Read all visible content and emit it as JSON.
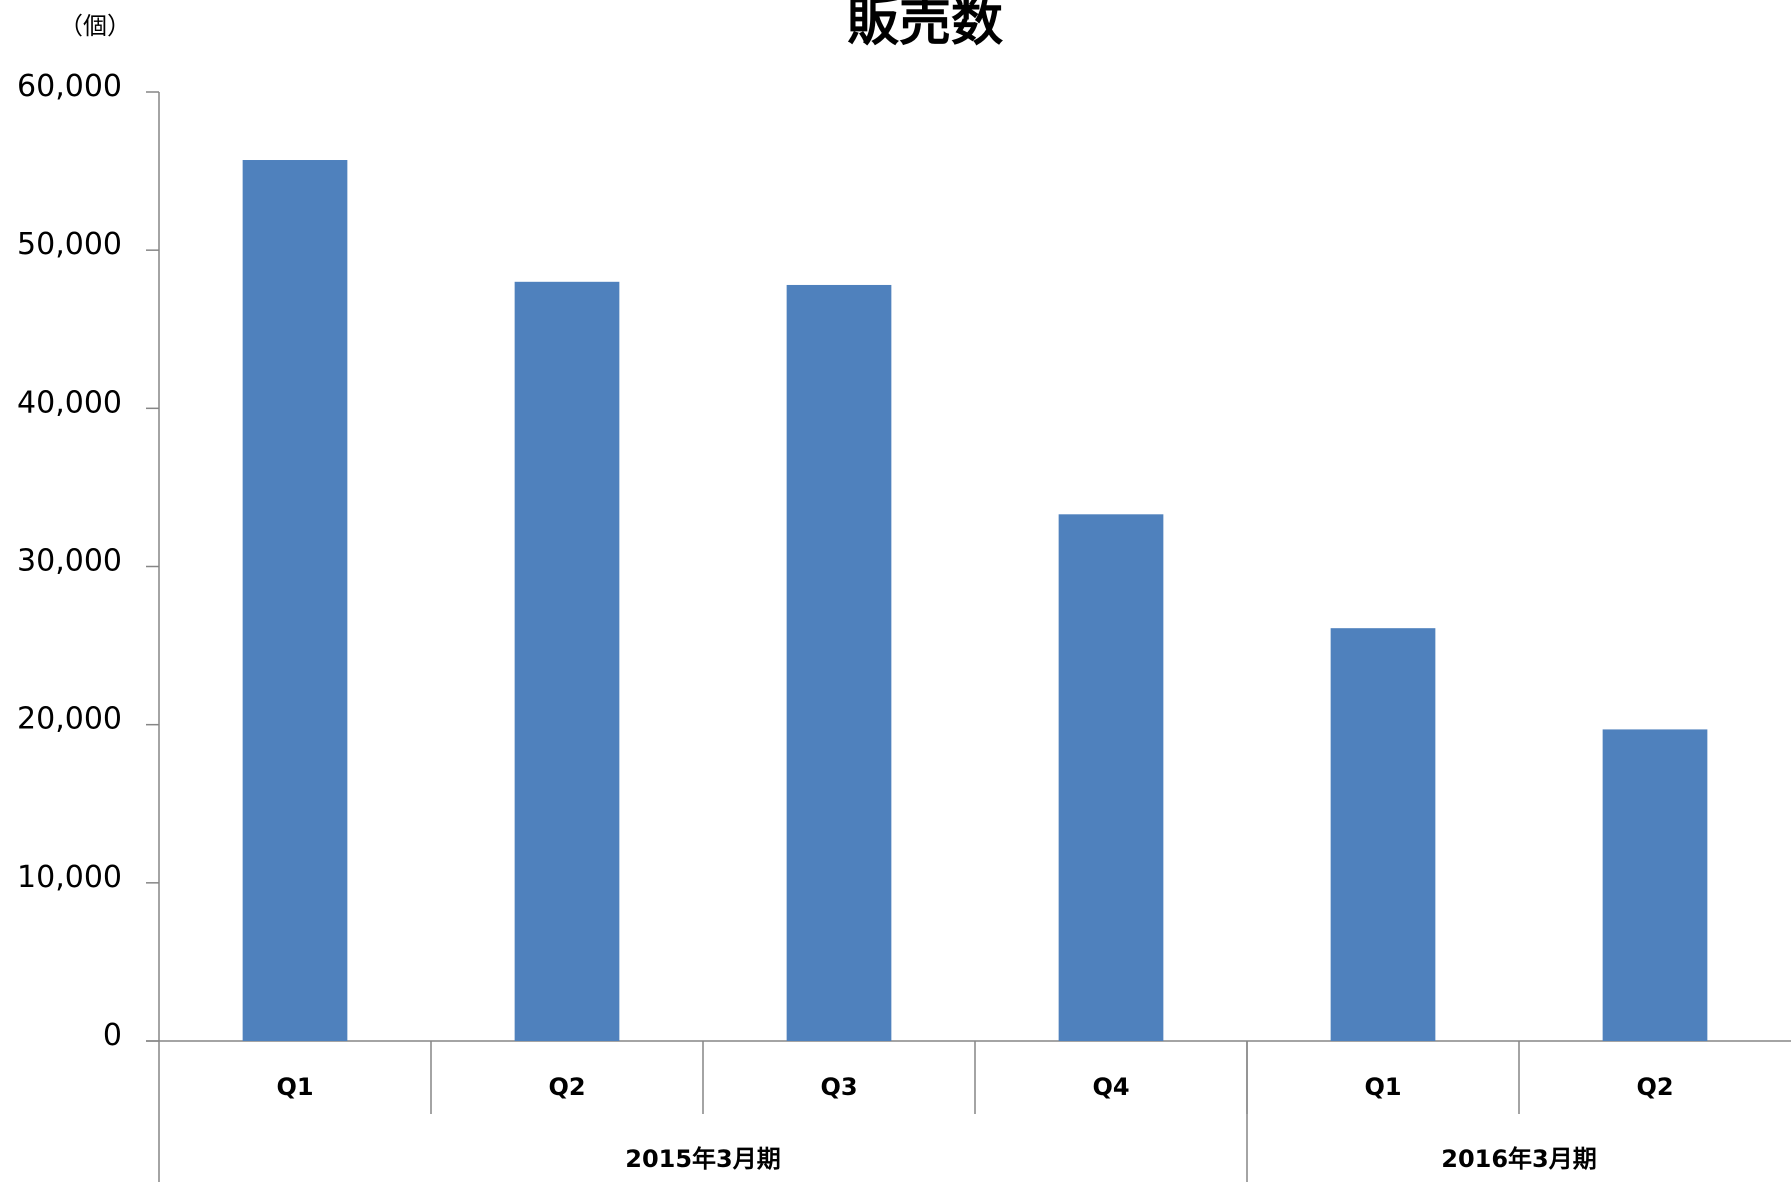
{
  "chart_data": {
    "type": "bar",
    "title": "販売数",
    "unit_label": "（個）",
    "ylim": [
      0,
      60000
    ],
    "yticks": [
      0,
      10000,
      20000,
      30000,
      40000,
      50000,
      60000
    ],
    "ytick_labels": [
      "0",
      "10,000",
      "20,000",
      "30,000",
      "40,000",
      "50,000",
      "60,000"
    ],
    "categories": [
      "Q1",
      "Q2",
      "Q3",
      "Q4",
      "Q1",
      "Q2"
    ],
    "groups": [
      {
        "label": "2015年3月期",
        "count": 4
      },
      {
        "label": "2016年3月期",
        "count": 2
      }
    ],
    "series": [
      {
        "values": [
          55700,
          48000,
          47800,
          33300,
          26100,
          19700
        ]
      }
    ],
    "bar_color": "#4f81bd",
    "axis_color": "#868686",
    "grid": false,
    "legend": "none"
  }
}
